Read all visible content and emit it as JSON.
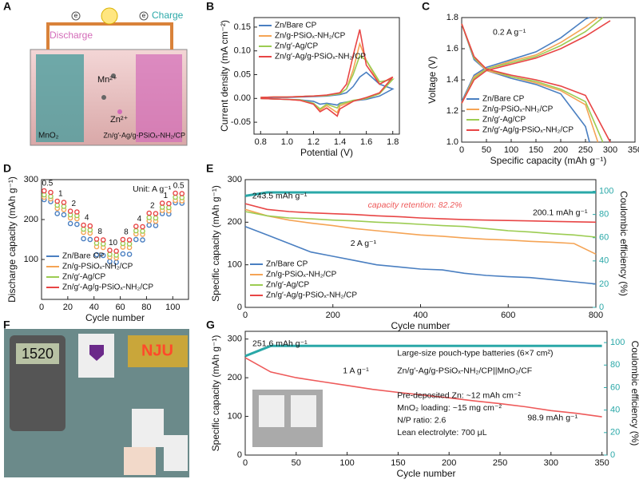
{
  "panel_labels": [
    "A",
    "B",
    "C",
    "D",
    "E",
    "F",
    "G"
  ],
  "schematic": {
    "charge": "Charge",
    "discharge": "Discharge",
    "mn_ion": "Mn²⁺",
    "zn_ion": "Zn²⁺",
    "cathode": "MnO₂",
    "anode": "Zn/g′-Ag/g-PSiOₓ-NH₂/CP",
    "electron": "e"
  },
  "photo": {
    "display": "1520",
    "sign": "NJU"
  },
  "chart_data": [
    {
      "type": "line",
      "xlabel": "Potential (V)",
      "ylabel": "Current density (mA cm⁻²)",
      "xlim": [
        0.75,
        1.85
      ],
      "ylim": [
        -0.075,
        0.17
      ],
      "xticks": [
        0.8,
        {
          "value": 1.0,
          "label": "1.0"
        },
        1.2,
        1.4,
        1.6,
        1.8
      ],
      "yticks": [
        -0.05,
        {
          "value": 0,
          "label": "0.00"
        },
        0.05,
        {
          "value": 0.1,
          "label": "0.10"
        },
        0.15
      ],
      "legend": "upper left",
      "series": [
        {
          "name": "Zn/Bare CP",
          "color": "#4a7fc1",
          "x": [
            0.8,
            0.9,
            1.0,
            1.1,
            1.2,
            1.3,
            1.4,
            1.45,
            1.5,
            1.55,
            1.6,
            1.7,
            1.8,
            1.7,
            1.6,
            1.5,
            1.4,
            1.38,
            1.3,
            1.25,
            1.2,
            1.1,
            1.0,
            0.9,
            0.8
          ],
          "values": [
            0.001,
            0.002,
            0.002,
            0.003,
            0.004,
            0.005,
            0.008,
            0.012,
            0.025,
            0.045,
            0.055,
            0.03,
            0.02,
            0.005,
            -0.002,
            -0.005,
            -0.01,
            -0.014,
            -0.01,
            -0.012,
            -0.006,
            -0.003,
            -0.002,
            -0.001,
            0.0
          ]
        },
        {
          "name": "Zn/g-PSiOₓ-NH₂/CP",
          "color": "#f5a455",
          "x": [
            0.8,
            0.9,
            1.0,
            1.1,
            1.2,
            1.3,
            1.4,
            1.45,
            1.5,
            1.55,
            1.6,
            1.7,
            1.8,
            1.7,
            1.6,
            1.5,
            1.4,
            1.38,
            1.3,
            1.25,
            1.2,
            1.1,
            1.0,
            0.9,
            0.8
          ],
          "values": [
            0.002,
            0.003,
            0.003,
            0.004,
            0.005,
            0.006,
            0.01,
            0.02,
            0.06,
            0.115,
            0.08,
            0.03,
            0.045,
            0.01,
            0.0,
            -0.005,
            -0.016,
            -0.03,
            -0.015,
            -0.025,
            -0.011,
            -0.004,
            -0.002,
            -0.001,
            0.0
          ]
        },
        {
          "name": "Zn/g′-Ag/CP",
          "color": "#9ccc52",
          "x": [
            0.8,
            0.9,
            1.0,
            1.1,
            1.2,
            1.3,
            1.4,
            1.45,
            1.5,
            1.55,
            1.6,
            1.7,
            1.8,
            1.7,
            1.6,
            1.5,
            1.4,
            1.38,
            1.3,
            1.25,
            1.2,
            1.1,
            1.0,
            0.9,
            0.8
          ],
          "values": [
            0.002,
            0.003,
            0.003,
            0.004,
            0.005,
            0.006,
            0.01,
            0.02,
            0.05,
            0.09,
            0.08,
            0.035,
            0.04,
            0.01,
            0.0,
            -0.004,
            -0.012,
            -0.02,
            -0.012,
            -0.022,
            -0.01,
            -0.003,
            -0.002,
            -0.001,
            0.0
          ]
        },
        {
          "name": "Zn/g′-Ag/g-PSiOₓ-NH₂/CP",
          "color": "#e84545",
          "x": [
            0.8,
            0.9,
            1.0,
            1.1,
            1.2,
            1.3,
            1.4,
            1.45,
            1.5,
            1.55,
            1.6,
            1.7,
            1.8,
            1.7,
            1.6,
            1.5,
            1.4,
            1.38,
            1.3,
            1.25,
            1.2,
            1.1,
            1.0,
            0.9,
            0.8
          ],
          "values": [
            0.002,
            0.003,
            0.003,
            0.004,
            0.005,
            0.007,
            0.012,
            0.03,
            0.09,
            0.145,
            0.07,
            0.03,
            0.045,
            0.012,
            0.002,
            -0.006,
            -0.022,
            -0.037,
            -0.02,
            -0.028,
            -0.012,
            -0.004,
            -0.002,
            -0.001,
            0.0
          ]
        }
      ]
    },
    {
      "type": "line",
      "xlabel": "Specific capacity (mAh g⁻¹)",
      "ylabel": "Voltage (V)",
      "xlim": [
        0,
        350
      ],
      "ylim": [
        1.0,
        1.8
      ],
      "xticks": [
        0,
        50,
        100,
        150,
        200,
        250,
        300,
        350
      ],
      "yticks": [
        {
          "value": 1.0,
          "label": "1.0"
        },
        1.2,
        1.4,
        1.6,
        1.8
      ],
      "legend": "lower left",
      "annotations": [
        "0.2 A g⁻¹"
      ],
      "series": [
        {
          "name": "Zn/Bare CP",
          "color": "#4a7fc1",
          "x": [
            0,
            25,
            50,
            100,
            150,
            200,
            250,
            258,
            null,
            0,
            25,
            50,
            100,
            150,
            200,
            250,
            258
          ],
          "values": [
            1.26,
            1.43,
            1.48,
            1.53,
            1.58,
            1.67,
            1.79,
            1.8,
            null,
            1.76,
            1.53,
            1.46,
            1.41,
            1.37,
            1.31,
            1.1,
            1.0
          ]
        },
        {
          "name": "Zn/g-PSiOₓ-NH₂/CP",
          "color": "#f5a455",
          "x": [
            0,
            25,
            50,
            100,
            150,
            200,
            250,
            275,
            null,
            0,
            25,
            50,
            100,
            150,
            200,
            250,
            275
          ],
          "values": [
            1.25,
            1.42,
            1.47,
            1.52,
            1.56,
            1.64,
            1.74,
            1.8,
            null,
            1.76,
            1.54,
            1.46,
            1.42,
            1.38,
            1.33,
            1.24,
            1.0
          ]
        },
        {
          "name": "Zn/g′-Ag/CP",
          "color": "#9ccc52",
          "x": [
            0,
            25,
            50,
            100,
            150,
            200,
            250,
            285,
            null,
            0,
            25,
            50,
            100,
            150,
            200,
            250,
            285
          ],
          "values": [
            1.25,
            1.41,
            1.47,
            1.51,
            1.55,
            1.62,
            1.71,
            1.8,
            null,
            1.76,
            1.54,
            1.47,
            1.42,
            1.39,
            1.34,
            1.26,
            1.0
          ]
        },
        {
          "name": "Zn/g′-Ag/g-PSiOₓ-NH₂/CP",
          "color": "#e84545",
          "x": [
            0,
            25,
            50,
            100,
            150,
            200,
            250,
            300,
            null,
            0,
            25,
            50,
            100,
            150,
            200,
            250,
            300
          ],
          "values": [
            1.25,
            1.4,
            1.46,
            1.5,
            1.54,
            1.6,
            1.68,
            1.78,
            null,
            1.76,
            1.55,
            1.47,
            1.43,
            1.4,
            1.36,
            1.3,
            1.0
          ]
        }
      ]
    },
    {
      "type": "scatter",
      "xlabel": "Cycle number",
      "ylabel": "Discharge capacity (mAh g⁻¹)",
      "xlim": [
        0,
        112
      ],
      "ylim": [
        0,
        300
      ],
      "xticks": [
        0,
        20,
        40,
        60,
        80,
        100
      ],
      "yticks": [
        100,
        200,
        300
      ],
      "legend": "lower left",
      "annotations": [
        "Unit: A g⁻¹"
      ],
      "rate_labels": [
        "0.5",
        "1",
        "2",
        "4",
        "8",
        "10",
        "8",
        "4",
        "2",
        "1",
        "0.5"
      ],
      "x": [
        2,
        7,
        12,
        17,
        22,
        27,
        32,
        37,
        42,
        47,
        52,
        57,
        62,
        67,
        72,
        77,
        82,
        87,
        92,
        97,
        102,
        107
      ],
      "series": [
        {
          "name": "Zn/Bare CP",
          "color": "#4a7fc1",
          "values": [
            250,
            245,
            215,
            212,
            190,
            188,
            152,
            150,
            112,
            110,
            95,
            93,
            114,
            113,
            150,
            149,
            186,
            185,
            215,
            214,
            242,
            241
          ]
        },
        {
          "name": "Zn/g-PSiOₓ-NH₂/CP",
          "color": "#f5a455",
          "values": [
            256,
            252,
            228,
            225,
            204,
            202,
            168,
            166,
            132,
            130,
            106,
            104,
            131,
            130,
            164,
            163,
            197,
            196,
            223,
            222,
            248,
            247
          ]
        },
        {
          "name": "Zn/g′-Ag/CP",
          "color": "#9ccc52",
          "values": [
            262,
            258,
            236,
            233,
            212,
            210,
            176,
            174,
            141,
            139,
            113,
            111,
            140,
            139,
            172,
            171,
            205,
            204,
            231,
            230,
            256,
            255
          ]
        },
        {
          "name": "Zn/g′-Ag/g-PSiOₓ-NH₂/CP",
          "color": "#e84545",
          "values": [
            272,
            268,
            246,
            243,
            221,
            219,
            186,
            184,
            151,
            149,
            123,
            121,
            150,
            149,
            183,
            182,
            216,
            215,
            241,
            240,
            266,
            265
          ]
        }
      ]
    },
    {
      "type": "line",
      "xlabel": "Cycle number",
      "ylabel": "Specific capacity (mAh g⁻¹)",
      "y2label": "Coulombic efficiency (%)",
      "xlim": [
        0,
        800
      ],
      "ylim": [
        0,
        300
      ],
      "y2lim": [
        0,
        110
      ],
      "xticks": [
        0,
        200,
        400,
        600,
        800
      ],
      "yticks": [
        0,
        100,
        200,
        300
      ],
      "y2ticks": [
        0,
        20,
        40,
        60,
        80,
        100
      ],
      "legend": "lower left",
      "annotations": [
        "243.5 mAh g⁻¹",
        "capacity retention: 82.2%",
        "200.1 mAh g⁻¹",
        "2 A g⁻¹"
      ],
      "x": [
        0,
        50,
        100,
        150,
        200,
        250,
        300,
        350,
        400,
        450,
        500,
        550,
        600,
        650,
        700,
        750,
        800
      ],
      "series": [
        {
          "name": "Zn/Bare CP",
          "color": "#4a7fc1",
          "values": [
            190,
            170,
            150,
            130,
            120,
            110,
            100,
            95,
            90,
            88,
            80,
            75,
            72,
            70,
            65,
            60,
            55
          ]
        },
        {
          "name": "Zn/g-PSiOₓ-NH₂/CP",
          "color": "#f5a455",
          "values": [
            230,
            215,
            205,
            198,
            192,
            185,
            180,
            175,
            170,
            167,
            163,
            160,
            158,
            155,
            153,
            150,
            125
          ]
        },
        {
          "name": "Zn/g′-Ag/CP",
          "color": "#9ccc52",
          "values": [
            225,
            215,
            210,
            208,
            205,
            203,
            200,
            198,
            195,
            192,
            190,
            185,
            180,
            177,
            173,
            170,
            165
          ]
        },
        {
          "name": "Zn/g′-Ag/g-PSiOₓ-NH₂/CP",
          "color": "#e84545",
          "values": [
            243.5,
            230,
            225,
            222,
            220,
            218,
            215,
            213,
            210,
            208,
            206,
            205,
            204,
            203,
            202,
            201,
            200.1
          ]
        },
        {
          "color": "#2aa8a8",
          "axis": "y2",
          "values": [
            96,
            99,
            99,
            99,
            99,
            99,
            99,
            99,
            99,
            99,
            99,
            99,
            99,
            99,
            99,
            99,
            99
          ]
        }
      ]
    },
    {
      "type": "line",
      "xlabel": "Cycle number",
      "ylabel": "Specific capacity (mAh g⁻¹)",
      "y2label": "Coulombic efficiency (%)",
      "xlim": [
        0,
        355
      ],
      "ylim": [
        0,
        320
      ],
      "y2lim": [
        0,
        110
      ],
      "xticks": [
        0,
        50,
        100,
        150,
        200,
        250,
        300,
        350
      ],
      "yticks": [
        0,
        100,
        200,
        300
      ],
      "y2ticks": [
        0,
        20,
        40,
        60,
        80,
        100
      ],
      "annotations": [
        "251.6 mAh g⁻¹",
        "1 A g⁻¹",
        "98.9 mAh g⁻¹",
        "Large-size pouch-type batteries (6×7 cm²)",
        "Zn/g′-Ag/g-PSiOₓ-NH₂/CP||MnO₂/CF",
        "Pre-deposited Zn: ~12 mAh cm⁻²",
        "MnO₂ loading: ~15 mg cm⁻²",
        "N/P ratio: 2.6",
        "Lean electrolyte: 700 μL"
      ],
      "x": [
        0,
        25,
        50,
        75,
        100,
        125,
        150,
        175,
        200,
        225,
        250,
        275,
        300,
        325,
        350
      ],
      "series": [
        {
          "color": "#ee5a5a",
          "values": [
            251.6,
            215,
            200,
            190,
            180,
            170,
            162,
            155,
            148,
            140,
            133,
            125,
            115,
            108,
            98.9
          ]
        },
        {
          "color": "#2aa8a8",
          "axis": "y2",
          "values": [
            88,
            97,
            97,
            97,
            97,
            97,
            97,
            97,
            97,
            97,
            97,
            97,
            97,
            97,
            97
          ]
        }
      ]
    }
  ]
}
